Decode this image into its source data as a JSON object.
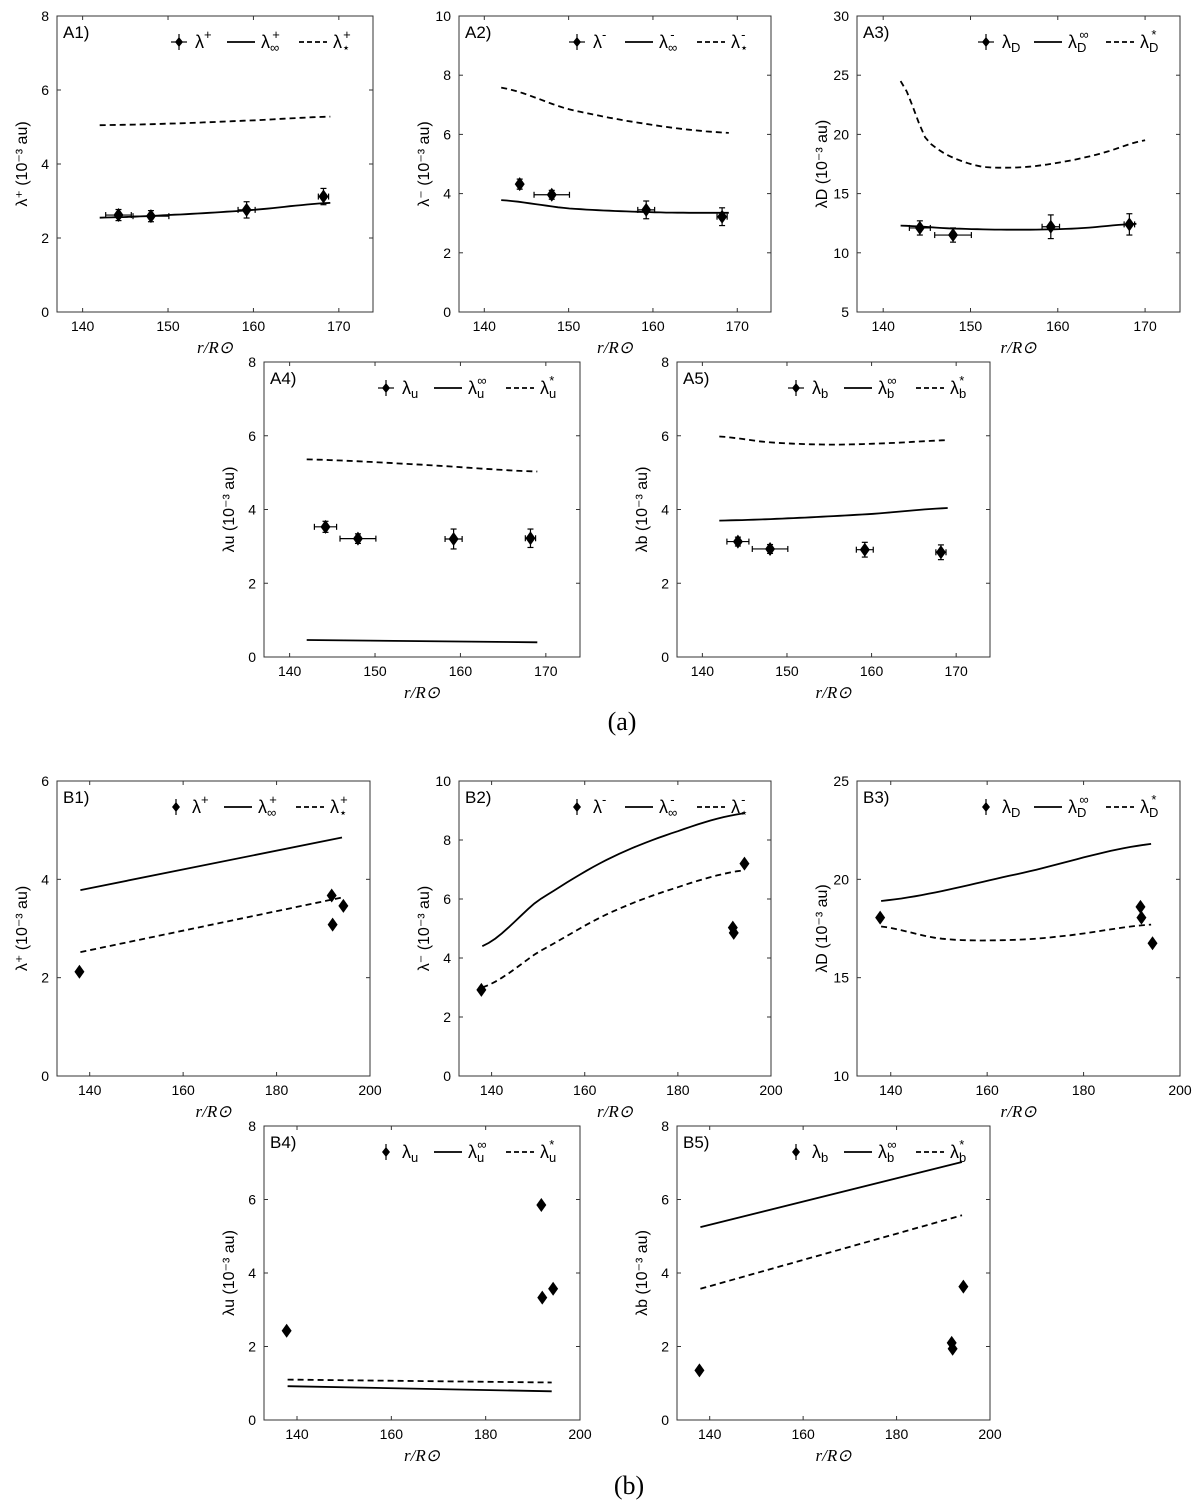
{
  "captions": [
    "(a)",
    "(b)"
  ],
  "chart_data": [
    {
      "id": "A1",
      "type": "scatter",
      "panel_label": "A1)",
      "xlabel": "r/R⊙",
      "ylabel": "λ⁺ (10⁻³ au)",
      "xlim": [
        137,
        174
      ],
      "ylim": [
        0,
        8
      ],
      "xticks": [
        140,
        150,
        160,
        170
      ],
      "yticks": [
        0,
        2,
        4,
        6,
        8
      ],
      "legend": [
        "λ⁺",
        "λ⁺∞",
        "λ⁺⋆"
      ],
      "points": [
        {
          "x": 144.2,
          "y": 2.62,
          "xerr": 1.5,
          "yerr": 0.15
        },
        {
          "x": 148.0,
          "y": 2.59,
          "xerr": 2.1,
          "yerr": 0.15
        },
        {
          "x": 159.2,
          "y": 2.76,
          "xerr": 1.0,
          "yerr": 0.22
        },
        {
          "x": 168.2,
          "y": 3.12,
          "xerr": 0.6,
          "yerr": 0.22
        }
      ],
      "solid": {
        "x": [
          142,
          150,
          160,
          169
        ],
        "y": [
          2.55,
          2.62,
          2.76,
          2.95
        ]
      },
      "dashed": {
        "x": [
          142,
          150,
          160,
          169
        ],
        "y": [
          5.05,
          5.09,
          5.18,
          5.28
        ]
      }
    },
    {
      "id": "A2",
      "type": "scatter",
      "panel_label": "A2)",
      "xlabel": "r/R⊙",
      "ylabel": "λ⁻ (10⁻³ au)",
      "xlim": [
        137,
        174
      ],
      "ylim": [
        0,
        10
      ],
      "xticks": [
        140,
        150,
        160,
        170
      ],
      "yticks": [
        0,
        2,
        4,
        6,
        8,
        10
      ],
      "legend": [
        "λ⁻",
        "λ⁻∞",
        "λ⁻⋆"
      ],
      "points": [
        {
          "x": 144.2,
          "y": 4.32,
          "xerr": 0,
          "yerr": 0.17
        },
        {
          "x": 148.0,
          "y": 3.96,
          "xerr": 2.1,
          "yerr": 0.15
        },
        {
          "x": 159.2,
          "y": 3.45,
          "xerr": 1.0,
          "yerr": 0.3
        },
        {
          "x": 168.2,
          "y": 3.22,
          "xerr": 0.6,
          "yerr": 0.3
        }
      ],
      "solid": {
        "x": [
          142,
          150,
          160,
          169
        ],
        "y": [
          3.78,
          3.5,
          3.37,
          3.35
        ]
      },
      "dashed": {
        "x": [
          142,
          150,
          160,
          169
        ],
        "y": [
          7.58,
          6.85,
          6.32,
          6.05
        ]
      }
    },
    {
      "id": "A3",
      "type": "scatter",
      "panel_label": "A3)",
      "xlabel": "r/R⊙",
      "ylabel": "λD (10⁻³ au)",
      "xlim": [
        137,
        174
      ],
      "ylim": [
        5,
        30
      ],
      "xticks": [
        140,
        150,
        160,
        170
      ],
      "yticks": [
        5,
        10,
        15,
        20,
        25,
        30
      ],
      "legend": [
        "λD",
        "λD∞",
        "λD⋆"
      ],
      "points": [
        {
          "x": 144.2,
          "y": 12.1,
          "xerr": 1.2,
          "yerr": 0.6
        },
        {
          "x": 148.0,
          "y": 11.5,
          "xerr": 2.1,
          "yerr": 0.6
        },
        {
          "x": 159.2,
          "y": 12.2,
          "xerr": 1.0,
          "yerr": 1.0
        },
        {
          "x": 168.2,
          "y": 12.4,
          "xerr": 0.6,
          "yerr": 0.9
        }
      ],
      "solid": {
        "x": [
          142,
          148,
          155,
          162,
          169
        ],
        "y": [
          12.3,
          12.05,
          11.95,
          12.05,
          12.45
        ]
      },
      "dashed": {
        "x": [
          142,
          145,
          150,
          155,
          160,
          165,
          170
        ],
        "y": [
          24.5,
          19.5,
          17.5,
          17.2,
          17.6,
          18.4,
          19.5
        ]
      }
    },
    {
      "id": "A4",
      "type": "scatter",
      "panel_label": "A4)",
      "xlabel": "r/R⊙",
      "ylabel": "λu (10⁻³ au)",
      "xlim": [
        137,
        174
      ],
      "ylim": [
        0,
        8
      ],
      "xticks": [
        140,
        150,
        160,
        170
      ],
      "yticks": [
        0,
        2,
        4,
        6,
        8
      ],
      "legend": [
        "λu",
        "λu∞",
        "λu⋆"
      ],
      "points": [
        {
          "x": 144.2,
          "y": 3.53,
          "xerr": 1.3,
          "yerr": 0.15
        },
        {
          "x": 148.0,
          "y": 3.21,
          "xerr": 2.1,
          "yerr": 0.13
        },
        {
          "x": 159.2,
          "y": 3.2,
          "xerr": 1.0,
          "yerr": 0.27
        },
        {
          "x": 168.2,
          "y": 3.22,
          "xerr": 0.6,
          "yerr": 0.25
        }
      ],
      "solid": {
        "x": [
          142,
          169
        ],
        "y": [
          0.46,
          0.4
        ]
      },
      "dashed": {
        "x": [
          142,
          155,
          169
        ],
        "y": [
          5.36,
          5.22,
          5.03
        ]
      }
    },
    {
      "id": "A5",
      "type": "scatter",
      "panel_label": "A5)",
      "xlabel": "r/R⊙",
      "ylabel": "λb (10⁻³ au)",
      "xlim": [
        137,
        174
      ],
      "ylim": [
        0,
        8
      ],
      "xticks": [
        140,
        150,
        160,
        170
      ],
      "yticks": [
        0,
        2,
        4,
        6,
        8
      ],
      "legend": [
        "λb",
        "λb∞",
        "λb⋆"
      ],
      "points": [
        {
          "x": 144.2,
          "y": 3.13,
          "xerr": 1.3,
          "yerr": 0.12
        },
        {
          "x": 148.0,
          "y": 2.93,
          "xerr": 2.1,
          "yerr": 0.12
        },
        {
          "x": 159.2,
          "y": 2.91,
          "xerr": 1.0,
          "yerr": 0.2
        },
        {
          "x": 168.2,
          "y": 2.84,
          "xerr": 0.6,
          "yerr": 0.2
        }
      ],
      "solid": {
        "x": [
          142,
          150,
          160,
          169
        ],
        "y": [
          3.7,
          3.76,
          3.88,
          4.04
        ]
      },
      "dashed": {
        "x": [
          142,
          148,
          155,
          162,
          169
        ],
        "y": [
          5.98,
          5.82,
          5.76,
          5.8,
          5.88
        ]
      }
    },
    {
      "id": "B1",
      "type": "scatter",
      "panel_label": "B1)",
      "xlabel": "r/R⊙",
      "ylabel": "λ⁺ (10⁻³ au)",
      "xlim": [
        133,
        200
      ],
      "ylim": [
        0,
        6
      ],
      "xticks": [
        140,
        160,
        180,
        200
      ],
      "yticks": [
        0,
        2,
        4,
        6
      ],
      "legend": [
        "λ⁺",
        "λ⁺∞",
        "λ⁺⋆"
      ],
      "points": [
        {
          "x": 137.8,
          "y": 2.12
        },
        {
          "x": 191.8,
          "y": 3.67
        },
        {
          "x": 192.0,
          "y": 3.08
        },
        {
          "x": 194.3,
          "y": 3.46
        }
      ],
      "solid": {
        "x": [
          138,
          194
        ],
        "y": [
          3.78,
          4.85
        ]
      },
      "dashed": {
        "x": [
          138,
          194
        ],
        "y": [
          2.52,
          3.63
        ]
      }
    },
    {
      "id": "B2",
      "type": "scatter",
      "panel_label": "B2)",
      "xlabel": "r/R⊙",
      "ylabel": "λ⁻ (10⁻³ au)",
      "xlim": [
        133,
        200
      ],
      "ylim": [
        0,
        10
      ],
      "xticks": [
        140,
        160,
        180,
        200
      ],
      "yticks": [
        0,
        2,
        4,
        6,
        8,
        10
      ],
      "legend": [
        "λ⁻",
        "λ⁻∞",
        "λ⁻⋆"
      ],
      "points": [
        {
          "x": 137.8,
          "y": 2.92
        },
        {
          "x": 191.8,
          "y": 5.03
        },
        {
          "x": 192.0,
          "y": 4.85
        },
        {
          "x": 194.3,
          "y": 7.2
        }
      ],
      "solid": {
        "x": [
          138,
          150,
          165,
          180,
          194
        ],
        "y": [
          4.4,
          5.95,
          7.35,
          8.3,
          8.9
        ]
      },
      "dashed": {
        "x": [
          138,
          150,
          165,
          180,
          194
        ],
        "y": [
          3.0,
          4.2,
          5.5,
          6.4,
          6.97
        ]
      }
    },
    {
      "id": "B3",
      "type": "scatter",
      "panel_label": "B3)",
      "xlabel": "r/R⊙",
      "ylabel": "λD (10⁻³ au)",
      "xlim": [
        133,
        200
      ],
      "ylim": [
        10,
        25
      ],
      "xticks": [
        140,
        160,
        180,
        200
      ],
      "yticks": [
        10,
        15,
        20,
        25
      ],
      "legend": [
        "λD",
        "λD∞",
        "λD⋆"
      ],
      "points": [
        {
          "x": 137.8,
          "y": 18.05
        },
        {
          "x": 191.8,
          "y": 18.6
        },
        {
          "x": 192.0,
          "y": 18.05
        },
        {
          "x": 194.3,
          "y": 16.75
        }
      ],
      "solid": {
        "x": [
          138,
          165,
          194
        ],
        "y": [
          18.9,
          20.2,
          21.8
        ]
      },
      "dashed": {
        "x": [
          138,
          150,
          162,
          175,
          194
        ],
        "y": [
          17.6,
          17.0,
          16.9,
          17.1,
          17.7
        ]
      }
    },
    {
      "id": "B4",
      "type": "scatter",
      "panel_label": "B4)",
      "xlabel": "r/R⊙",
      "ylabel": "λu (10⁻³ au)",
      "xlim": [
        133,
        200
      ],
      "ylim": [
        0,
        8
      ],
      "xticks": [
        140,
        160,
        180,
        200
      ],
      "yticks": [
        0,
        2,
        4,
        6,
        8
      ],
      "legend": [
        "λu",
        "λu∞",
        "λu⋆"
      ],
      "points": [
        {
          "x": 137.8,
          "y": 2.43
        },
        {
          "x": 191.8,
          "y": 5.85
        },
        {
          "x": 192.0,
          "y": 3.33
        },
        {
          "x": 194.3,
          "y": 3.57
        }
      ],
      "solid": {
        "x": [
          138,
          194
        ],
        "y": [
          0.92,
          0.78
        ]
      },
      "dashed": {
        "x": [
          138,
          194
        ],
        "y": [
          1.1,
          1.02
        ]
      }
    },
    {
      "id": "B5",
      "type": "scatter",
      "panel_label": "B5)",
      "xlabel": "r/R⊙",
      "ylabel": "λb (10⁻³ au)",
      "xlim": [
        133,
        200
      ],
      "ylim": [
        0,
        8
      ],
      "xticks": [
        140,
        160,
        180,
        200
      ],
      "yticks": [
        0,
        2,
        4,
        6,
        8
      ],
      "legend": [
        "λb",
        "λb∞",
        "λb⋆"
      ],
      "points": [
        {
          "x": 137.8,
          "y": 1.35
        },
        {
          "x": 191.8,
          "y": 2.1
        },
        {
          "x": 192.0,
          "y": 1.94
        },
        {
          "x": 194.3,
          "y": 3.63
        }
      ],
      "solid": {
        "x": [
          138,
          194
        ],
        "y": [
          5.25,
          7.02
        ]
      },
      "dashed": {
        "x": [
          138,
          194
        ],
        "y": [
          3.57,
          5.57
        ]
      }
    }
  ]
}
